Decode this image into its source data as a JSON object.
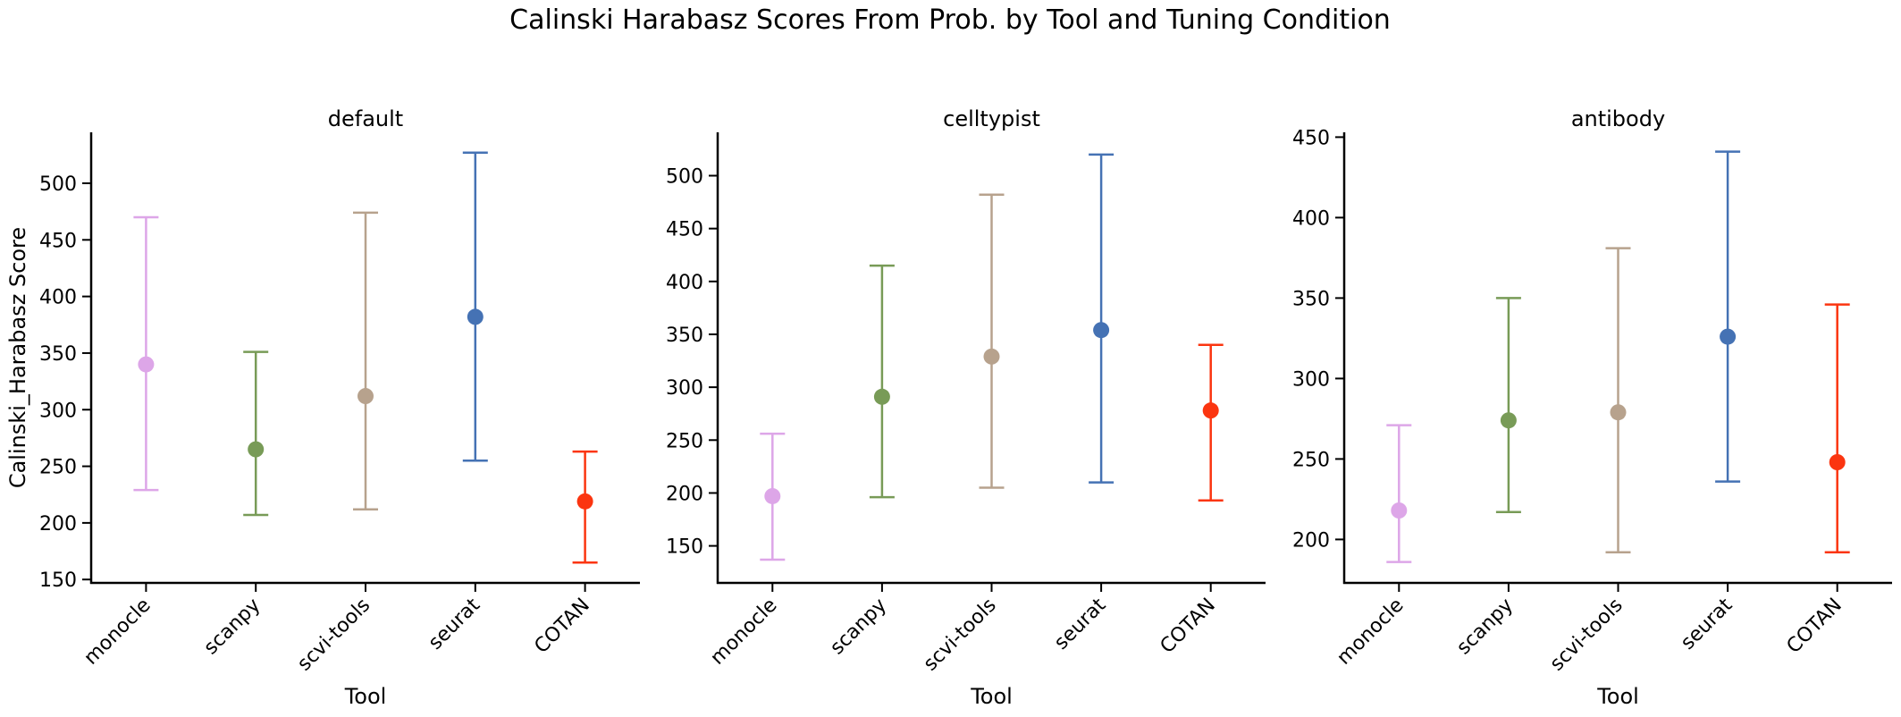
{
  "figure_title": "Calinski Harabasz Scores From Prob. by Tool and Tuning Condition",
  "chart_data": [
    {
      "type": "scatter",
      "title": "default",
      "xlabel": "Tool",
      "ylabel": "Calinski_Harabasz Score",
      "categories": [
        "monocle",
        "scanpy",
        "scvi-tools",
        "seurat",
        "COTAN"
      ],
      "colors": [
        "#dda6e8",
        "#789b57",
        "#b7a28d",
        "#4572b4",
        "#fb3510"
      ],
      "means": [
        340,
        265,
        312,
        382,
        219
      ],
      "lower": [
        229,
        207,
        212,
        255,
        165
      ],
      "upper": [
        470,
        351,
        474,
        527,
        263
      ],
      "ylim": [
        147,
        545
      ],
      "yticks": [
        150,
        200,
        250,
        300,
        350,
        400,
        450,
        500
      ],
      "grid": false
    },
    {
      "type": "scatter",
      "title": "celltypist",
      "xlabel": "Tool",
      "ylabel": "",
      "categories": [
        "monocle",
        "scanpy",
        "scvi-tools",
        "seurat",
        "COTAN"
      ],
      "colors": [
        "#dda6e8",
        "#789b57",
        "#b7a28d",
        "#4572b4",
        "#fb3510"
      ],
      "means": [
        197,
        291,
        329,
        354,
        278
      ],
      "lower": [
        137,
        196,
        205,
        210,
        193
      ],
      "upper": [
        256,
        415,
        482,
        520,
        340
      ],
      "ylim": [
        115,
        541
      ],
      "yticks": [
        150,
        200,
        250,
        300,
        350,
        400,
        450,
        500
      ],
      "grid": false
    },
    {
      "type": "scatter",
      "title": "antibody",
      "xlabel": "Tool",
      "ylabel": "",
      "categories": [
        "monocle",
        "scanpy",
        "scvi-tools",
        "seurat",
        "COTAN"
      ],
      "colors": [
        "#dda6e8",
        "#789b57",
        "#b7a28d",
        "#4572b4",
        "#fb3510"
      ],
      "means": [
        218,
        274,
        279,
        326,
        248
      ],
      "lower": [
        186,
        217,
        192,
        236,
        192
      ],
      "upper": [
        271,
        350,
        381,
        441,
        346
      ],
      "ylim": [
        173,
        453
      ],
      "yticks": [
        200,
        250,
        300,
        350,
        400,
        450
      ],
      "grid": false
    }
  ]
}
